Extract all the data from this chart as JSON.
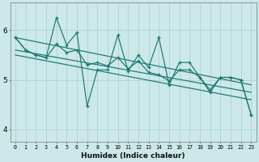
{
  "xlabel": "Humidex (Indice chaleur)",
  "xlim": [
    -0.5,
    23.5
  ],
  "ylim": [
    3.75,
    6.55
  ],
  "yticks": [
    4,
    5,
    6
  ],
  "xticks": [
    0,
    1,
    2,
    3,
    4,
    5,
    6,
    7,
    8,
    9,
    10,
    11,
    12,
    13,
    14,
    15,
    16,
    17,
    18,
    19,
    20,
    21,
    22,
    23
  ],
  "background_color": "#cce8e8",
  "grid_color": "#aacfcf",
  "line_color": "#1a7870",
  "jagged": [
    5.85,
    5.6,
    5.5,
    5.45,
    6.25,
    5.7,
    5.95,
    4.47,
    5.2,
    5.2,
    5.9,
    5.18,
    5.5,
    5.25,
    5.85,
    4.9,
    5.35,
    5.35,
    5.05,
    4.75,
    5.05,
    5.05,
    5.0,
    4.3
  ],
  "smooth": [
    5.85,
    5.6,
    5.5,
    5.45,
    5.72,
    5.55,
    5.6,
    5.3,
    5.35,
    5.28,
    5.45,
    5.22,
    5.38,
    5.15,
    5.1,
    4.98,
    5.2,
    5.2,
    5.05,
    4.8,
    5.05,
    5.05,
    5.0,
    4.3
  ],
  "trend1_start": 5.85,
  "trend1_end": 4.9,
  "trend2_start": 5.6,
  "trend2_end": 4.75,
  "trend3_start": 5.5,
  "trend3_end": 4.6
}
